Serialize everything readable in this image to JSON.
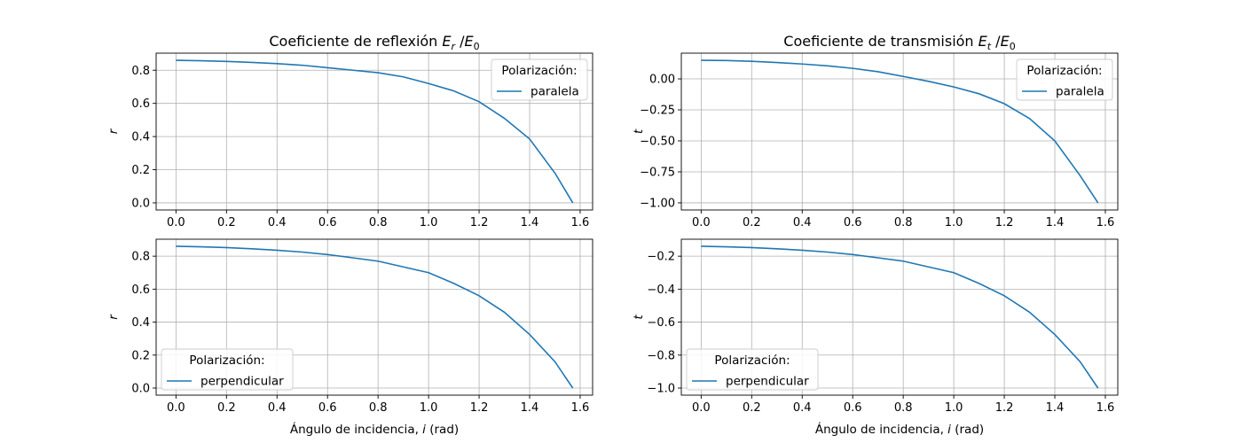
{
  "chart_data": [
    {
      "type": "line",
      "title": "Coeficiente de reflexión",
      "title_math": {
        "base": "E",
        "sub": "r",
        "den": "E",
        "den_sub": "0"
      },
      "xlabel": "Ángulo de incidencia, i (rad)",
      "xlabel_visible": false,
      "ylabel": "r",
      "xlim": [
        -0.0785,
        1.6493
      ],
      "ylim": [
        -0.043,
        0.9029
      ],
      "xticks": [
        0.0,
        0.2,
        0.4,
        0.6,
        0.8,
        1.0,
        1.2,
        1.4,
        1.6
      ],
      "yticks": [
        0.0,
        0.2,
        0.4,
        0.6,
        0.8
      ],
      "ytick_labels": [
        "0.0",
        "0.2",
        "0.4",
        "0.6",
        "0.8"
      ],
      "grid": true,
      "legend": {
        "title": "Polarización:",
        "placement": "top-right"
      },
      "series": [
        {
          "name": "paralela",
          "color": "#1f77b4",
          "x": [
            0.0,
            0.1,
            0.2,
            0.3,
            0.4,
            0.5,
            0.6,
            0.7,
            0.8,
            0.9,
            1.0,
            1.1,
            1.2,
            1.3,
            1.4,
            1.5,
            1.5708
          ],
          "y": [
            0.86,
            0.857,
            0.853,
            0.847,
            0.84,
            0.83,
            0.815,
            0.8,
            0.785,
            0.76,
            0.72,
            0.675,
            0.61,
            0.51,
            0.385,
            0.18,
            0.0
          ]
        }
      ]
    },
    {
      "type": "line",
      "title": "Coeficiente de transmisión",
      "title_math": {
        "base": "E",
        "sub": "t",
        "den": "E",
        "den_sub": "0"
      },
      "xlabel": "Ángulo de incidencia, i (rad)",
      "xlabel_visible": false,
      "ylabel": "t",
      "xlim": [
        -0.0785,
        1.6493
      ],
      "ylim": [
        -1.0575,
        0.2075
      ],
      "xticks": [
        0.0,
        0.2,
        0.4,
        0.6,
        0.8,
        1.0,
        1.2,
        1.4,
        1.6
      ],
      "yticks": [
        -1.0,
        -0.75,
        -0.5,
        -0.25,
        0.0
      ],
      "ytick_labels": [
        "−1.00",
        "−0.75",
        "−0.50",
        "−0.25",
        "0.00"
      ],
      "grid": true,
      "legend": {
        "title": "Polarización:",
        "placement": "top-right"
      },
      "series": [
        {
          "name": "paralela",
          "color": "#1f77b4",
          "x": [
            0.0,
            0.1,
            0.2,
            0.3,
            0.4,
            0.5,
            0.6,
            0.7,
            0.8,
            0.9,
            1.0,
            1.1,
            1.2,
            1.3,
            1.4,
            1.5,
            1.5708
          ],
          "y": [
            0.15,
            0.148,
            0.142,
            0.132,
            0.12,
            0.105,
            0.085,
            0.058,
            0.02,
            -0.02,
            -0.065,
            -0.12,
            -0.2,
            -0.32,
            -0.5,
            -0.78,
            -1.0
          ]
        }
      ]
    },
    {
      "type": "line",
      "title": "",
      "xlabel": "Ángulo de incidencia, i (rad)",
      "xlabel_visible": true,
      "ylabel": "r",
      "xlim": [
        -0.0785,
        1.6493
      ],
      "ylim": [
        -0.043,
        0.9029
      ],
      "xticks": [
        0.0,
        0.2,
        0.4,
        0.6,
        0.8,
        1.0,
        1.2,
        1.4,
        1.6
      ],
      "yticks": [
        0.0,
        0.2,
        0.4,
        0.6,
        0.8
      ],
      "ytick_labels": [
        "0.0",
        "0.2",
        "0.4",
        "0.6",
        "0.8"
      ],
      "grid": true,
      "legend": {
        "title": "Polarización:",
        "placement": "bottom-left"
      },
      "series": [
        {
          "name": "perpendicular",
          "color": "#1f77b4",
          "x": [
            0.0,
            0.1,
            0.2,
            0.3,
            0.4,
            0.5,
            0.6,
            0.7,
            0.8,
            0.9,
            1.0,
            1.1,
            1.2,
            1.3,
            1.4,
            1.5,
            1.5708
          ],
          "y": [
            0.86,
            0.857,
            0.852,
            0.845,
            0.836,
            0.825,
            0.81,
            0.79,
            0.77,
            0.735,
            0.7,
            0.635,
            0.56,
            0.46,
            0.325,
            0.16,
            0.0
          ]
        }
      ]
    },
    {
      "type": "line",
      "title": "",
      "xlabel": "Ángulo de incidencia, i (rad)",
      "xlabel_visible": true,
      "ylabel": "t",
      "xlim": [
        -0.0785,
        1.6493
      ],
      "ylim": [
        -1.043,
        -0.0971
      ],
      "xticks": [
        0.0,
        0.2,
        0.4,
        0.6,
        0.8,
        1.0,
        1.2,
        1.4,
        1.6
      ],
      "yticks": [
        -1.0,
        -0.8,
        -0.6,
        -0.4,
        -0.2
      ],
      "ytick_labels": [
        "−1.0",
        "−0.8",
        "−0.6",
        "−0.4",
        "−0.2"
      ],
      "grid": true,
      "legend": {
        "title": "Polarización:",
        "placement": "bottom-left"
      },
      "series": [
        {
          "name": "perpendicular",
          "color": "#1f77b4",
          "x": [
            0.0,
            0.1,
            0.2,
            0.3,
            0.4,
            0.5,
            0.6,
            0.7,
            0.8,
            0.9,
            1.0,
            1.1,
            1.2,
            1.3,
            1.4,
            1.5,
            1.5708
          ],
          "y": [
            -0.14,
            -0.143,
            -0.148,
            -0.155,
            -0.164,
            -0.175,
            -0.19,
            -0.21,
            -0.23,
            -0.265,
            -0.3,
            -0.365,
            -0.44,
            -0.54,
            -0.675,
            -0.84,
            -1.0
          ]
        }
      ]
    }
  ]
}
